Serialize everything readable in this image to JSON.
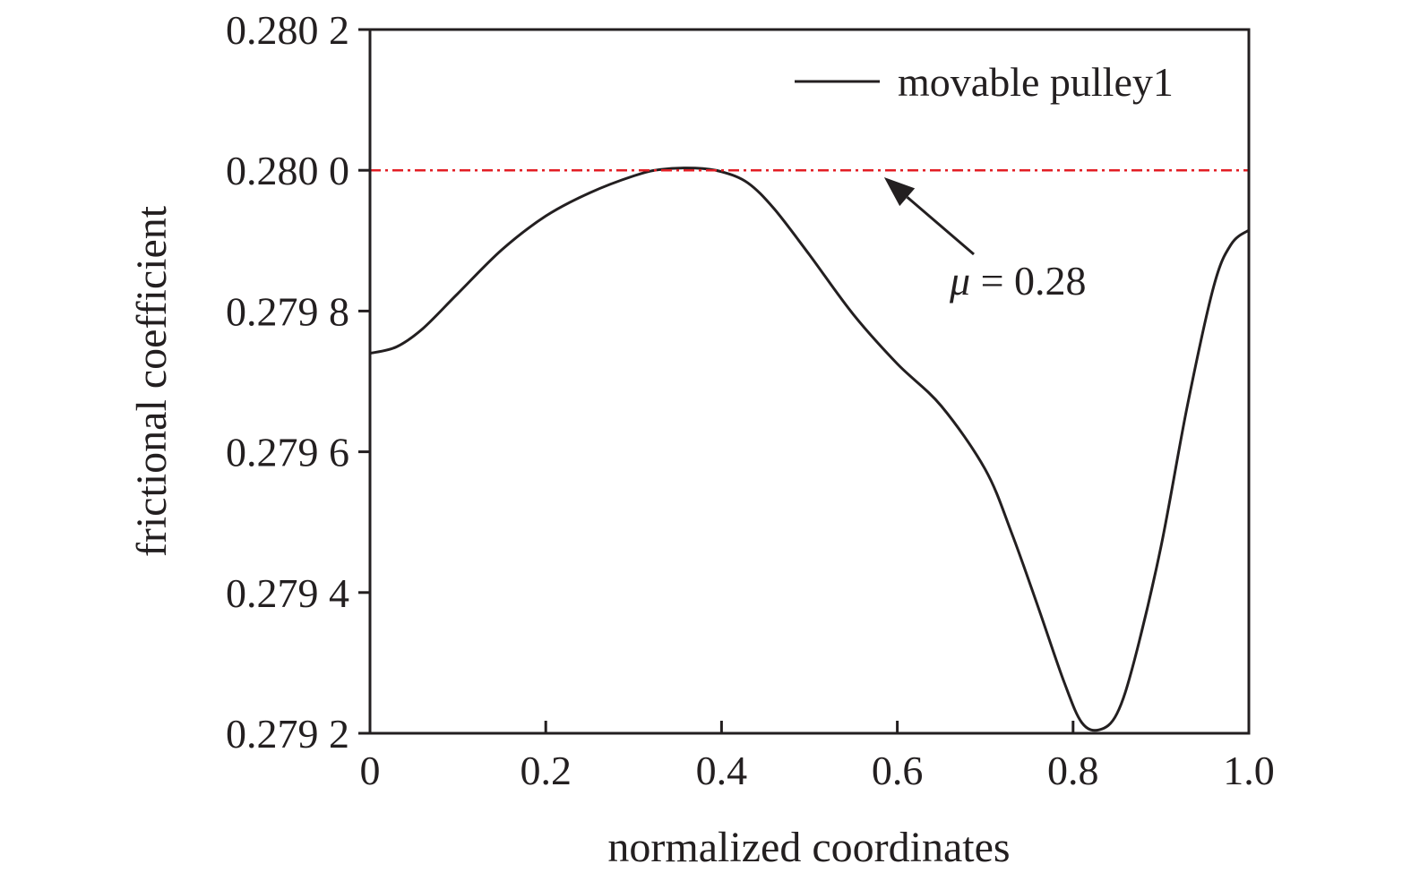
{
  "chart_data": {
    "type": "line",
    "xlabel": "normalized coordinates",
    "ylabel": "frictional coefficient",
    "xlim": [
      0,
      1.0
    ],
    "ylim": [
      0.2792,
      0.2802
    ],
    "x_ticks": [
      0,
      0.2,
      0.4,
      0.6,
      0.8,
      1.0
    ],
    "x_tick_labels": [
      "0",
      "0.2",
      "0.4",
      "0.6",
      "0.8",
      "1.0"
    ],
    "y_ticks": [
      0.2792,
      0.2794,
      0.2796,
      0.2798,
      0.28,
      0.2802
    ],
    "y_tick_labels": [
      "0.279 2",
      "0.279 4",
      "0.279 6",
      "0.279 8",
      "0.280 0",
      "0.280 2"
    ],
    "grid": false,
    "legend_position": "top-right",
    "series": [
      {
        "name": "movable pulley1",
        "color": "#231f20",
        "style": "solid",
        "x": [
          0,
          0.03,
          0.06,
          0.1,
          0.15,
          0.2,
          0.25,
          0.3,
          0.33,
          0.37,
          0.4,
          0.43,
          0.46,
          0.5,
          0.55,
          0.6,
          0.65,
          0.7,
          0.73,
          0.76,
          0.79,
          0.81,
          0.83,
          0.85,
          0.87,
          0.9,
          0.93,
          0.96,
          0.98,
          1.0
        ],
        "y": [
          0.27974,
          0.279749,
          0.279775,
          0.279825,
          0.279887,
          0.279935,
          0.279968,
          0.279992,
          0.280001,
          0.280003,
          0.279998,
          0.279982,
          0.279945,
          0.27988,
          0.279795,
          0.279725,
          0.279665,
          0.279575,
          0.279485,
          0.27938,
          0.279272,
          0.279215,
          0.279205,
          0.279228,
          0.279305,
          0.279465,
          0.279665,
          0.279835,
          0.279895,
          0.279915
        ]
      },
      {
        "name": "",
        "color": "#e31e24",
        "style": "dash-dot",
        "x": [
          0,
          1.0
        ],
        "y": [
          0.28,
          0.28
        ]
      }
    ],
    "annotations": [
      {
        "text": "μ = 0.28",
        "x": 0.68,
        "y": 0.27984,
        "arrow_to": [
          0.585,
          0.27999
        ]
      }
    ]
  }
}
